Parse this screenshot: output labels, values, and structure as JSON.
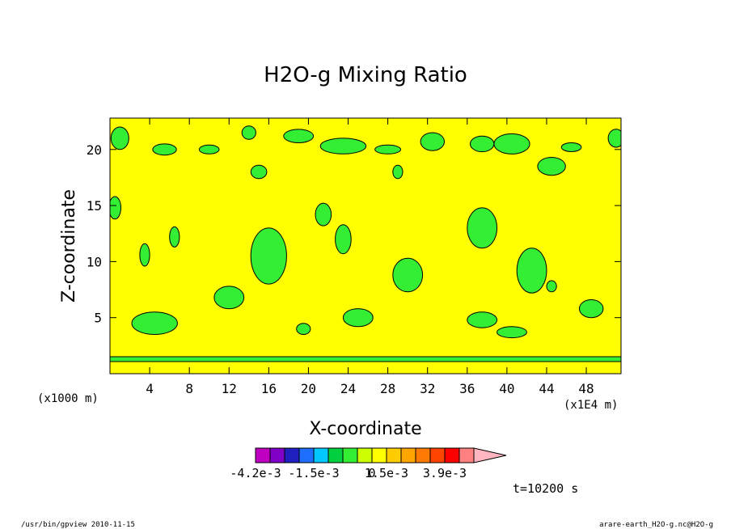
{
  "chart_data": {
    "type": "heatmap",
    "title": "H2O-g Mixing Ratio",
    "xlabel": "X-coordinate",
    "ylabel": "Z-coordinate",
    "x_unit_left": "(x1000 m)",
    "x_unit_right": "(x1E4 m)",
    "xlim": [
      0,
      51.5
    ],
    "ylim": [
      0,
      22.8
    ],
    "x_ticks": [
      "4",
      "8",
      "12",
      "16",
      "20",
      "24",
      "28",
      "32",
      "36",
      "40",
      "44",
      "48"
    ],
    "y_ticks": [
      "5",
      "10",
      "15",
      "20"
    ],
    "background_color": "#ffff00",
    "anomaly_color": "#33ee33",
    "colorbar": {
      "colors": [
        "#c000c0",
        "#8000c8",
        "#2020c0",
        "#1e6eff",
        "#00c8ff",
        "#00d040",
        "#33ee33",
        "#ccff00",
        "#ffff00",
        "#ffcc00",
        "#ffa500",
        "#ff7a00",
        "#ff4400",
        "#ff0000",
        "#ff8080",
        "#ffb6c1"
      ],
      "labels": [
        "-4.2e-3",
        "-1.5e-3",
        "0",
        "1.5e-3",
        "3.9e-3"
      ]
    },
    "time_label": "t=10200 s",
    "green_regions": [
      {
        "x": 1,
        "z": 21,
        "rx": 0.9,
        "rz": 1.0
      },
      {
        "x": 5.5,
        "z": 20.0,
        "rx": 1.2,
        "rz": 0.5
      },
      {
        "x": 10,
        "z": 20.0,
        "rx": 1.0,
        "rz": 0.4
      },
      {
        "x": 14,
        "z": 21.5,
        "rx": 0.7,
        "rz": 0.6
      },
      {
        "x": 19,
        "z": 21.2,
        "rx": 1.5,
        "rz": 0.6
      },
      {
        "x": 23.5,
        "z": 20.3,
        "rx": 2.3,
        "rz": 0.7
      },
      {
        "x": 28,
        "z": 20.0,
        "rx": 1.3,
        "rz": 0.4
      },
      {
        "x": 32.5,
        "z": 20.7,
        "rx": 1.2,
        "rz": 0.8
      },
      {
        "x": 37.5,
        "z": 20.5,
        "rx": 1.2,
        "rz": 0.7
      },
      {
        "x": 40.5,
        "z": 20.5,
        "rx": 1.8,
        "rz": 0.9
      },
      {
        "x": 46.5,
        "z": 20.2,
        "rx": 1.0,
        "rz": 0.4
      },
      {
        "x": 51,
        "z": 21.0,
        "rx": 0.8,
        "rz": 0.8
      },
      {
        "x": 15,
        "z": 18.0,
        "rx": 0.8,
        "rz": 0.6
      },
      {
        "x": 29,
        "z": 18.0,
        "rx": 0.5,
        "rz": 0.6
      },
      {
        "x": 44.5,
        "z": 18.5,
        "rx": 1.4,
        "rz": 0.8
      },
      {
        "x": 0.5,
        "z": 14.8,
        "rx": 0.6,
        "rz": 1.0
      },
      {
        "x": 21.5,
        "z": 14.2,
        "rx": 0.8,
        "rz": 1.0
      },
      {
        "x": 23.5,
        "z": 12.0,
        "rx": 0.8,
        "rz": 1.3
      },
      {
        "x": 6.5,
        "z": 12.2,
        "rx": 0.5,
        "rz": 0.9
      },
      {
        "x": 3.5,
        "z": 10.6,
        "rx": 0.5,
        "rz": 1.0
      },
      {
        "x": 16,
        "z": 10.5,
        "rx": 1.8,
        "rz": 2.5
      },
      {
        "x": 12,
        "z": 6.8,
        "rx": 1.5,
        "rz": 1.0
      },
      {
        "x": 30,
        "z": 8.8,
        "rx": 1.5,
        "rz": 1.5
      },
      {
        "x": 37.5,
        "z": 13.0,
        "rx": 1.5,
        "rz": 1.8
      },
      {
        "x": 42.5,
        "z": 9.2,
        "rx": 1.5,
        "rz": 2.0
      },
      {
        "x": 4.5,
        "z": 4.5,
        "rx": 2.3,
        "rz": 1.0
      },
      {
        "x": 25,
        "z": 5.0,
        "rx": 1.5,
        "rz": 0.8
      },
      {
        "x": 37.5,
        "z": 4.8,
        "rx": 1.5,
        "rz": 0.7
      },
      {
        "x": 40.5,
        "z": 3.7,
        "rx": 1.5,
        "rz": 0.5
      },
      {
        "x": 19.5,
        "z": 4.0,
        "rx": 0.7,
        "rz": 0.5
      },
      {
        "x": 48.5,
        "z": 5.8,
        "rx": 1.2,
        "rz": 0.8
      },
      {
        "x": 44.5,
        "z": 7.8,
        "rx": 0.5,
        "rz": 0.5
      }
    ]
  },
  "footer": {
    "left": "/usr/bin/gpview  2010-11-15",
    "right": "arare-earth_H2O-g.nc@H2O-g"
  }
}
